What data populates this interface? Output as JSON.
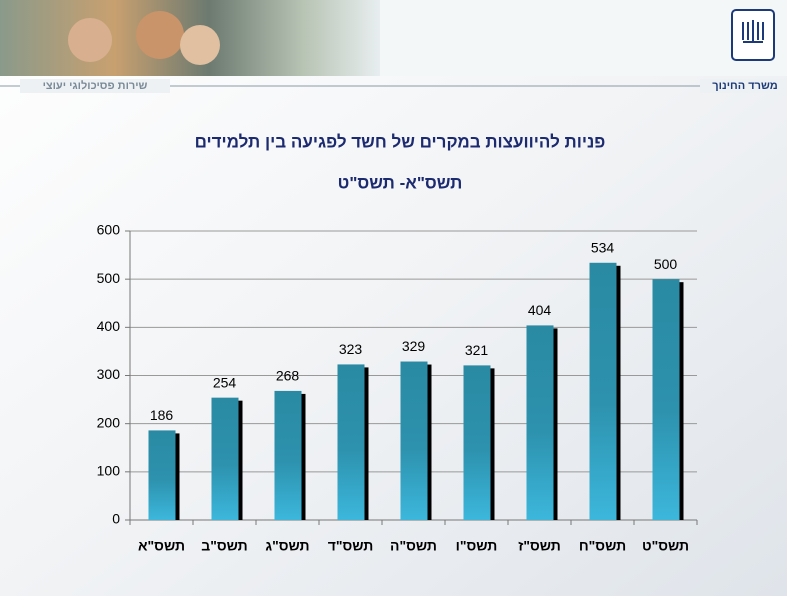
{
  "header": {
    "left_text": "שירות פסיכולוגי יעוצי",
    "right_text": "משרד החינוך"
  },
  "chart_data": {
    "type": "bar",
    "title": "פניות להיוועצות במקרים של חשד לפגיעה בין תלמידים",
    "subtitle": "תשס\"א- תשס\"ט",
    "categories": [
      "תשס\"א",
      "תשס\"ב",
      "תשס\"ג",
      "תשס\"ד",
      "תשס\"ה",
      "תשס\"ו",
      "תשס\"ז",
      "תשס\"ח",
      "תשס\"ט"
    ],
    "values": [
      186,
      254,
      268,
      323,
      329,
      321,
      404,
      534,
      500
    ],
    "ylim": [
      0,
      600
    ],
    "yticks": [
      0,
      100,
      200,
      300,
      400,
      500,
      600
    ],
    "grid": true
  }
}
